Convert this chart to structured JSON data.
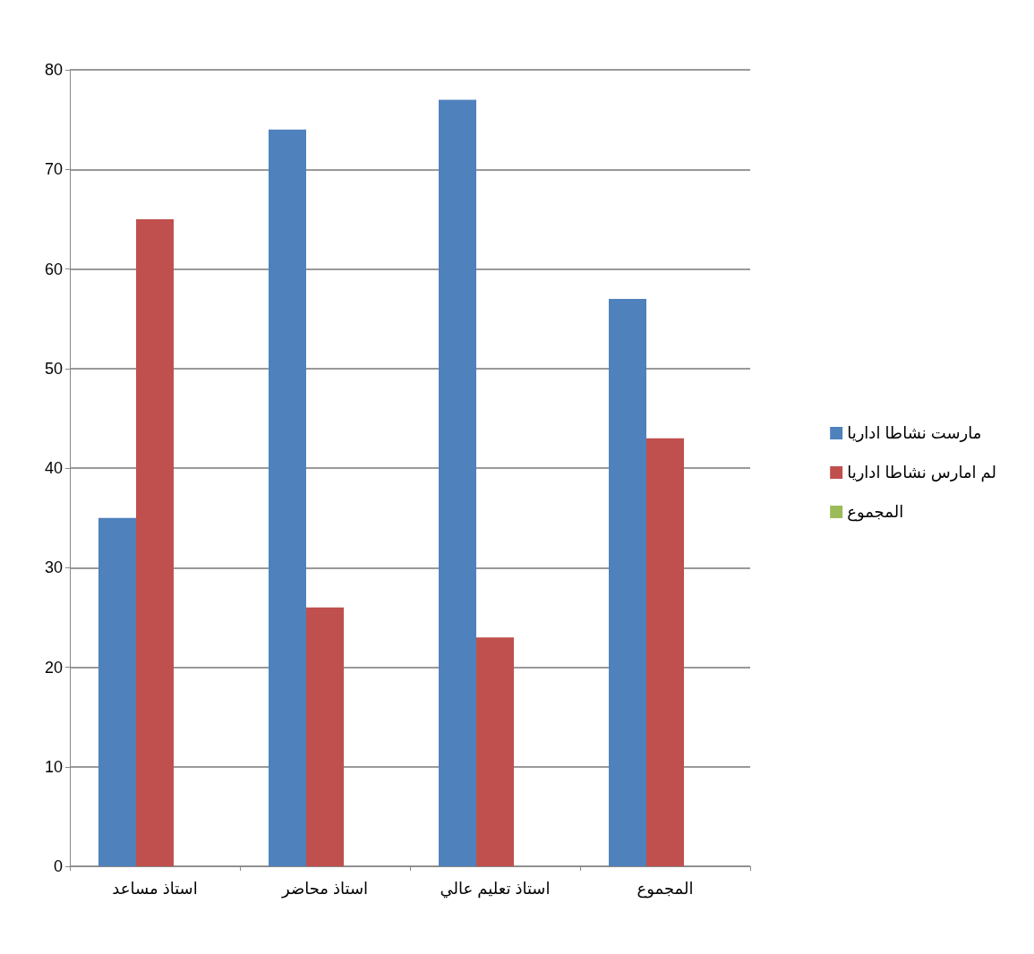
{
  "chart_data": {
    "type": "bar",
    "categories": [
      "استاذ مساعد",
      "استاذ محاضر",
      "استاذ تعليم عالي",
      "المجموع"
    ],
    "series": [
      {
        "name": "مارست نشاطا اداريا",
        "color": "#4f81bd",
        "values": [
          35,
          74,
          77,
          57
        ]
      },
      {
        "name": "لم امارس نشاطا اداريا",
        "color": "#c0504d",
        "values": [
          65,
          26,
          23,
          43
        ]
      },
      {
        "name": "المجموع",
        "color": "#9bbb59",
        "values": [
          null,
          null,
          null,
          null
        ]
      }
    ],
    "ylim": [
      0,
      80
    ],
    "yticks": [
      0,
      10,
      20,
      30,
      40,
      50,
      60,
      70,
      80
    ],
    "grid": "y",
    "legend": "right"
  }
}
